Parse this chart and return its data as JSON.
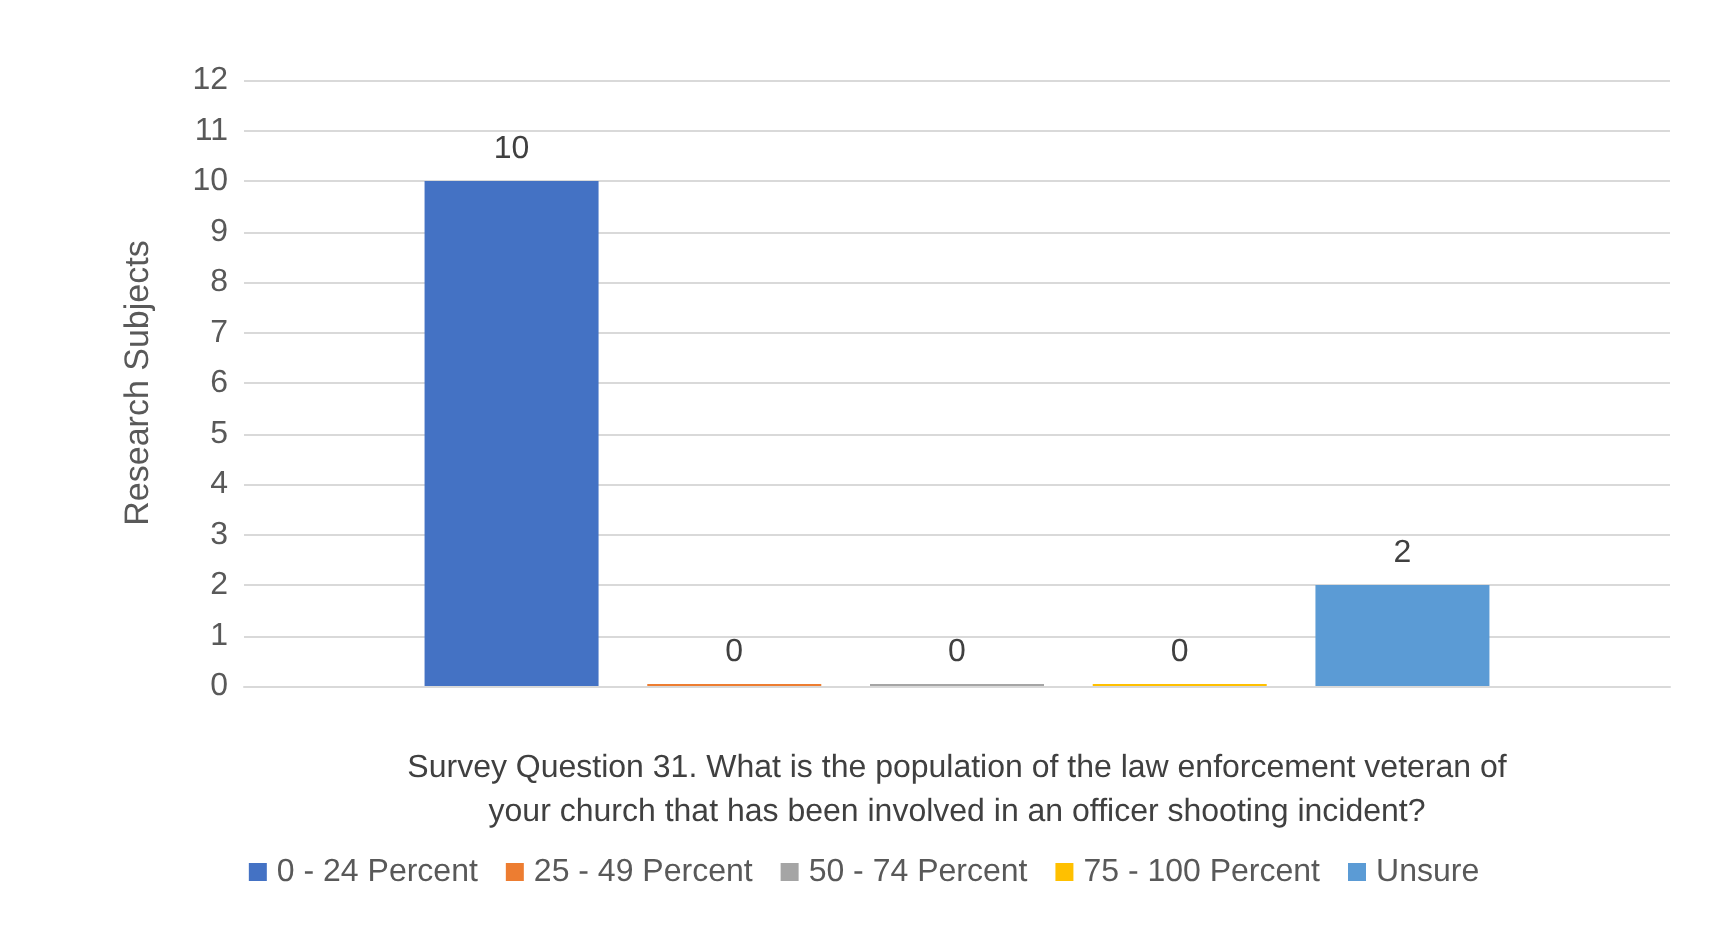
{
  "chart_data": {
    "type": "bar",
    "xlabel": "Survey Question 31. What is the population of the law enforcement veteran of\nyour church that has been involved in an officer shooting incident?",
    "ylabel": "Research Subjects",
    "categories": [
      null
    ],
    "series": [
      {
        "name": "0 - 24 Percent",
        "color": "#4472c4",
        "values": [
          10
        ]
      },
      {
        "name": "25 - 49 Percent",
        "color": "#ed7d31",
        "values": [
          0
        ]
      },
      {
        "name": "50 - 74 Percent",
        "color": "#a5a5a5",
        "values": [
          0
        ]
      },
      {
        "name": "75 - 100 Percent",
        "color": "#ffc000",
        "values": [
          0
        ]
      },
      {
        "name": "Unsure",
        "color": "#5b9bd5",
        "values": [
          2
        ]
      }
    ],
    "ylim": [
      0,
      12
    ],
    "yticks": [
      0,
      1,
      2,
      3,
      4,
      5,
      6,
      7,
      8,
      9,
      10,
      11,
      12
    ],
    "grid": "y",
    "legend": "bottom",
    "data_labels": true
  }
}
